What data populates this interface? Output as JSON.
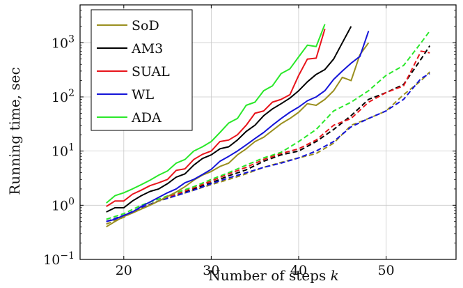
{
  "chart_data": {
    "type": "line",
    "xlabel": "Number of steps",
    "xlabel_var": "k",
    "ylabel": "Running time, sec",
    "xlim": [
      15,
      58
    ],
    "ylim": [
      0.1,
      5000
    ],
    "y_scale": "log",
    "x_ticks": [
      "20",
      "30",
      "40",
      "50"
    ],
    "x_tick_values": [
      20,
      30,
      40,
      50
    ],
    "y_ticks": [
      {
        "value": 0.1,
        "base": "10",
        "exp": "−1"
      },
      {
        "value": 1,
        "base": "10",
        "exp": "0"
      },
      {
        "value": 10,
        "base": "10",
        "exp": "1"
      },
      {
        "value": 100,
        "base": "10",
        "exp": "2"
      },
      {
        "value": 1000,
        "base": "10",
        "exp": "3"
      }
    ],
    "grid": true,
    "legend_position": "top-left",
    "line_styles": {
      "solid": "solid",
      "dashed": "dashed"
    },
    "series": [
      {
        "name": "SoD",
        "color": "#9a8f1f",
        "style": "solid",
        "x": [
          18,
          19,
          20,
          21,
          22,
          23,
          24,
          25,
          26,
          27,
          28,
          29,
          30,
          31,
          32,
          33,
          34,
          35,
          36,
          37,
          38,
          39,
          40,
          41,
          42,
          43,
          44,
          45,
          46,
          47,
          48
        ],
        "y": [
          0.4,
          0.5,
          0.62,
          0.72,
          0.85,
          1.0,
          1.2,
          1.45,
          1.75,
          2.2,
          2.9,
          3.6,
          4.2,
          5.2,
          6.0,
          8.5,
          11,
          15,
          18,
          24,
          32,
          40,
          52,
          75,
          70,
          90,
          130,
          230,
          200,
          600,
          1000
        ]
      },
      {
        "name": "AM3",
        "color": "#000000",
        "style": "solid",
        "x": [
          18,
          19,
          20,
          21,
          22,
          23,
          24,
          25,
          26,
          27,
          28,
          29,
          30,
          31,
          32,
          33,
          34,
          35,
          36,
          37,
          38,
          39,
          40,
          41,
          42,
          43,
          44,
          45,
          46
        ],
        "y": [
          0.75,
          0.9,
          0.9,
          1.2,
          1.5,
          1.8,
          2.0,
          2.5,
          3.3,
          3.8,
          5.5,
          7.3,
          8.5,
          11,
          12,
          16,
          23,
          30,
          45,
          60,
          75,
          95,
          130,
          190,
          260,
          320,
          500,
          1000,
          2000
        ]
      },
      {
        "name": "SUAL",
        "color": "#e8141b",
        "style": "solid",
        "x": [
          18,
          19,
          20,
          21,
          22,
          23,
          24,
          25,
          26,
          27,
          28,
          29,
          30,
          31,
          32,
          33,
          34,
          35,
          36,
          37,
          38,
          39,
          40,
          41,
          42,
          43
        ],
        "y": [
          0.95,
          1.2,
          1.2,
          1.6,
          1.9,
          2.3,
          2.6,
          3.0,
          4.4,
          4.7,
          7.0,
          8.7,
          10,
          15,
          16,
          20,
          30,
          50,
          55,
          80,
          90,
          110,
          250,
          500,
          520,
          1800
        ]
      },
      {
        "name": "WL",
        "color": "#1414d8",
        "style": "solid",
        "x": [
          18,
          19,
          20,
          21,
          22,
          23,
          24,
          25,
          26,
          27,
          28,
          29,
          30,
          31,
          32,
          33,
          34,
          35,
          36,
          37,
          38,
          39,
          40,
          41,
          42,
          43,
          44,
          45,
          46,
          47,
          48
        ],
        "y": [
          0.5,
          0.55,
          0.65,
          0.75,
          0.95,
          1.15,
          1.4,
          1.7,
          2.0,
          2.6,
          3.0,
          3.7,
          4.6,
          6.5,
          8,
          10,
          13,
          17,
          22,
          30,
          40,
          52,
          65,
          85,
          100,
          130,
          210,
          300,
          420,
          560,
          1650
        ]
      },
      {
        "name": "ADA",
        "color": "#2ae82a",
        "style": "solid",
        "x": [
          18,
          19,
          20,
          21,
          22,
          23,
          24,
          25,
          26,
          27,
          28,
          29,
          30,
          31,
          32,
          33,
          34,
          35,
          36,
          37,
          38,
          39,
          40,
          41,
          42,
          43
        ],
        "y": [
          1.1,
          1.5,
          1.7,
          2.0,
          2.4,
          2.9,
          3.6,
          4.3,
          6.0,
          7.0,
          10,
          12,
          15,
          22,
          33,
          40,
          70,
          80,
          130,
          160,
          270,
          330,
          550,
          900,
          850,
          2200
        ]
      },
      {
        "name": "",
        "color": "#9a8f1f",
        "style": "dashed",
        "x": [
          18,
          20,
          22,
          24,
          26,
          28,
          30,
          32,
          34,
          36,
          38,
          40,
          42,
          44,
          46,
          48,
          50,
          52,
          54,
          55
        ],
        "y": [
          0.45,
          0.6,
          0.9,
          1.2,
          1.5,
          1.9,
          2.4,
          3.0,
          3.8,
          5.0,
          6.2,
          7.5,
          9.0,
          14,
          30,
          40,
          55,
          110,
          200,
          290
        ]
      },
      {
        "name": "",
        "color": "#000000",
        "style": "dashed",
        "x": [
          18,
          20,
          22,
          24,
          26,
          28,
          30,
          32,
          34,
          36,
          38,
          40,
          42,
          44,
          46,
          48,
          50,
          52,
          54,
          55
        ],
        "y": [
          0.5,
          0.65,
          0.9,
          1.2,
          1.6,
          2.0,
          2.6,
          3.5,
          4.5,
          6.5,
          8.5,
          10,
          15,
          25,
          45,
          90,
          120,
          170,
          500,
          880
        ]
      },
      {
        "name": "",
        "color": "#e8141b",
        "style": "dashed",
        "x": [
          18,
          20,
          22,
          24,
          26,
          28,
          30,
          32,
          34,
          36,
          38,
          40,
          42,
          44,
          46,
          48,
          50,
          52,
          54,
          55
        ],
        "y": [
          0.5,
          0.65,
          0.9,
          1.2,
          1.6,
          2.1,
          2.8,
          3.8,
          5,
          7,
          9,
          11,
          16,
          30,
          40,
          80,
          120,
          160,
          700,
          650
        ]
      },
      {
        "name": "",
        "color": "#1414d8",
        "style": "dashed",
        "x": [
          18,
          20,
          22,
          24,
          26,
          28,
          30,
          32,
          34,
          36,
          38,
          40,
          42,
          44,
          46,
          48,
          50,
          52,
          54,
          55
        ],
        "y": [
          0.5,
          0.65,
          0.9,
          1.2,
          1.5,
          1.9,
          2.5,
          3.2,
          4.0,
          5.0,
          6.0,
          7.5,
          10,
          15,
          28,
          40,
          55,
          90,
          220,
          270
        ]
      },
      {
        "name": "",
        "color": "#2ae82a",
        "style": "dashed",
        "x": [
          18,
          20,
          22,
          24,
          26,
          28,
          30,
          32,
          34,
          36,
          38,
          40,
          42,
          44,
          46,
          48,
          50,
          52,
          54,
          55
        ],
        "y": [
          0.55,
          0.7,
          1.0,
          1.3,
          1.7,
          2.2,
          3.0,
          4.0,
          5.5,
          7.5,
          9.5,
          15,
          25,
          55,
          80,
          130,
          250,
          380,
          1000,
          1650
        ]
      }
    ]
  }
}
